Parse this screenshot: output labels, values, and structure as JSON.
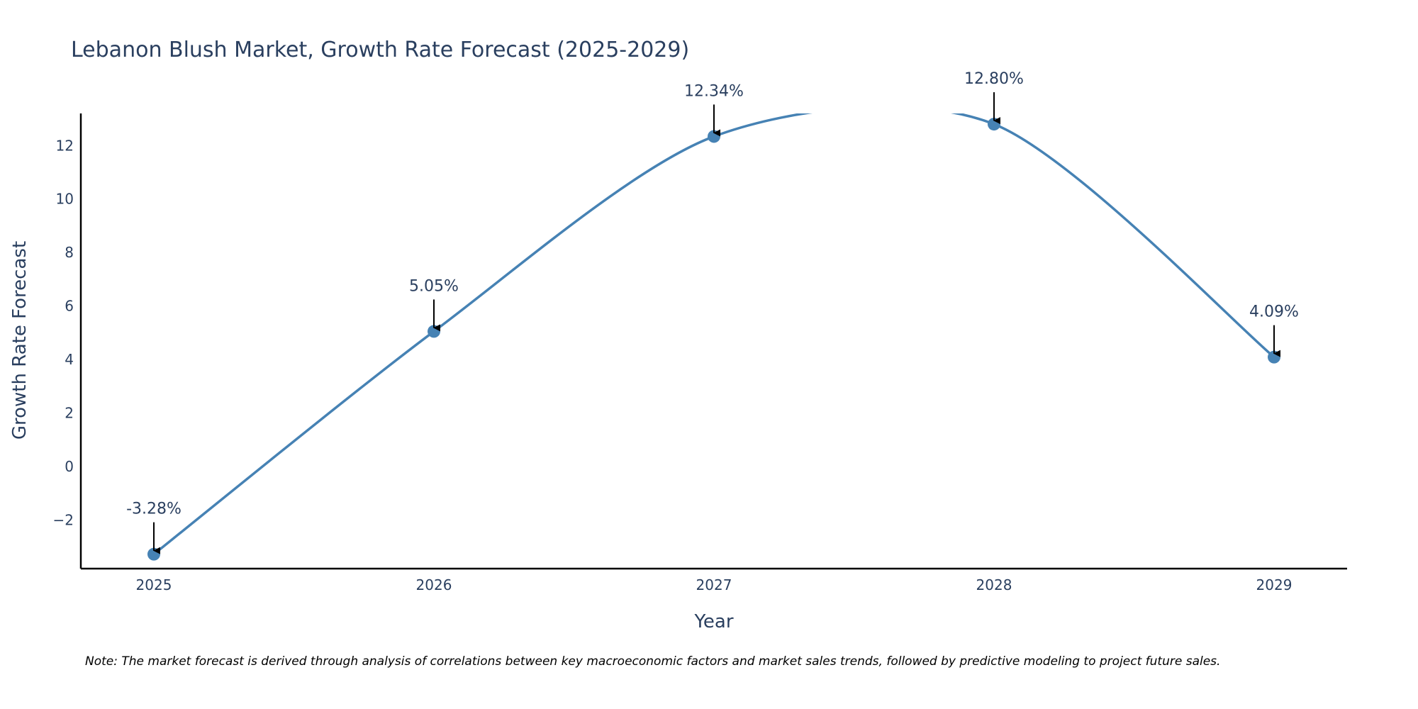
{
  "chart_data": {
    "type": "line",
    "title": "Lebanon Blush Market, Growth Rate Forecast (2025-2029)",
    "xlabel": "Year",
    "ylabel": "Growth Rate Forecast",
    "categories": [
      "2025",
      "2026",
      "2027",
      "2028",
      "2029"
    ],
    "series": [
      {
        "name": "Growth Rate Forecast",
        "values": [
          -3.28,
          5.05,
          12.34,
          12.8,
          4.09
        ]
      }
    ],
    "data_labels": [
      "-3.28%",
      "5.05%",
      "12.34%",
      "12.80%",
      "4.09%"
    ],
    "y_ticks": [
      -2,
      0,
      2,
      4,
      6,
      8,
      10,
      12
    ],
    "y_tick_labels": [
      "−2",
      "0",
      "2",
      "4",
      "6",
      "8",
      "10",
      "12"
    ],
    "ylim": [
      -3.82,
      13.2
    ],
    "grid": false,
    "line_color": "#4682b4",
    "marker_color": "#4682b4",
    "annotation_arrow_color": "#000000",
    "note": "Note: The market forecast is derived through analysis of correlations between key macroeconomic factors and market sales trends, followed by predictive modeling to project future sales."
  }
}
